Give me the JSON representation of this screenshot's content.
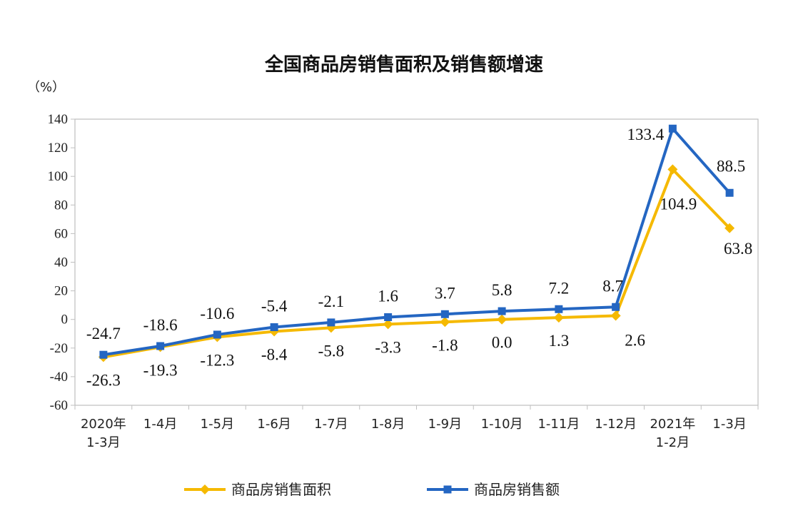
{
  "chart_data": {
    "type": "line",
    "title": "全国商品房销售面积及销售额增速",
    "unit_label": "（%）",
    "ylim": [
      -60,
      140
    ],
    "yticks": [
      -60,
      -40,
      -20,
      0,
      20,
      40,
      60,
      80,
      100,
      120,
      140
    ],
    "categories": [
      [
        "2020年",
        "1-3月"
      ],
      [
        "1-4月"
      ],
      [
        "1-5月"
      ],
      [
        "1-6月"
      ],
      [
        "1-7月"
      ],
      [
        "1-8月"
      ],
      [
        "1-9月"
      ],
      [
        "1-10月"
      ],
      [
        "1-11月"
      ],
      [
        "1-12月"
      ],
      [
        "2021年",
        "1-2月"
      ],
      [
        "1-3月"
      ]
    ],
    "series": [
      {
        "name": "商品房销售面积",
        "color": "#F5B900",
        "marker": "diamond",
        "values": [
          -26.3,
          -19.3,
          -12.3,
          -8.4,
          -5.8,
          -3.3,
          -1.8,
          0.0,
          1.3,
          2.6,
          104.9,
          63.8
        ],
        "labels": [
          "-26.3",
          "-19.3",
          "-12.3",
          "-8.4",
          "-5.8",
          "-3.3",
          "-1.8",
          "0.0",
          "1.3",
          "2.6",
          "104.9",
          "63.8"
        ]
      },
      {
        "name": "商品房销售额",
        "color": "#2466C2",
        "marker": "square",
        "values": [
          -24.7,
          -18.6,
          -10.6,
          -5.4,
          -2.1,
          1.6,
          3.7,
          5.8,
          7.2,
          8.7,
          133.4,
          88.5
        ],
        "labels": [
          "-24.7",
          "-18.6",
          "-10.6",
          "-5.4",
          "-2.1",
          "1.6",
          "3.7",
          "5.8",
          "7.2",
          "8.7",
          "133.4",
          "88.5"
        ]
      }
    ],
    "grid": false,
    "legend": "bottom"
  }
}
